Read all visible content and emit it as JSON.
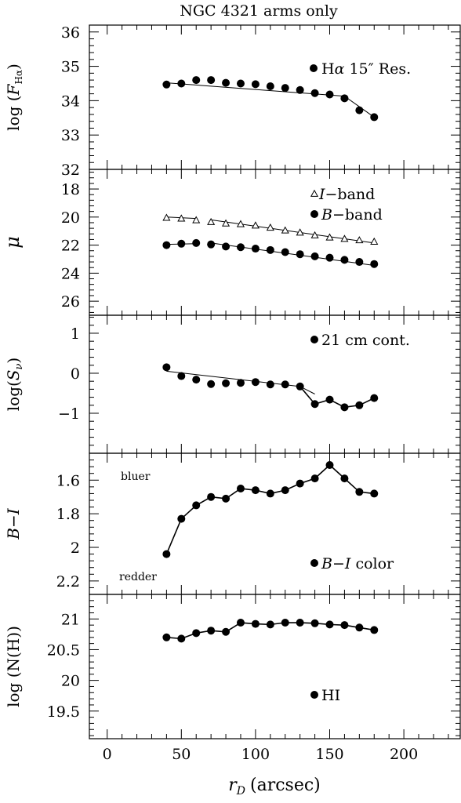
{
  "figure": {
    "title": "NGC 4321 arms only",
    "xlabel_var": "r",
    "xlabel_sub": "D",
    "xlabel_unit": "(arcsec)"
  },
  "chart_data": [
    {
      "type": "line",
      "panel": "halpha",
      "ylabel": "log (F_Hα)",
      "xlim": [
        -12,
        238
      ],
      "ylim": [
        32,
        36.2
      ],
      "yticks": [
        32,
        33,
        34,
        35,
        36
      ],
      "xticks": [
        0,
        50,
        100,
        150,
        200
      ],
      "series": [
        {
          "name": "Hα 15'' Res.",
          "marker": "filled-circle",
          "x": [
            40,
            50,
            60,
            70,
            80,
            90,
            100,
            110,
            120,
            130,
            140,
            150,
            160,
            170,
            180
          ],
          "y": [
            34.47,
            34.5,
            34.6,
            34.6,
            34.52,
            34.5,
            34.48,
            34.42,
            34.37,
            34.31,
            34.22,
            34.18,
            34.07,
            33.72,
            33.52
          ]
        }
      ],
      "fit_lines": [
        {
          "x": [
            40,
            160
          ],
          "y": [
            34.52,
            34.13
          ]
        },
        {
          "x": [
            160,
            180
          ],
          "y": [
            34.13,
            33.52
          ]
        }
      ],
      "legend_text": "Hα 15'' Res."
    },
    {
      "type": "line",
      "panel": "surface-brightness",
      "ylabel": "μ",
      "ylim": [
        27,
        16.6
      ],
      "yticks": [
        18,
        20,
        22,
        24,
        26
      ],
      "series": [
        {
          "name": "I-band",
          "marker": "open-triangle",
          "x": [
            40,
            50,
            60,
            70,
            80,
            90,
            100,
            110,
            120,
            130,
            140,
            150,
            160,
            170,
            180
          ],
          "y": [
            20.05,
            20.1,
            20.22,
            20.35,
            20.45,
            20.5,
            20.6,
            20.75,
            20.95,
            21.1,
            21.3,
            21.45,
            21.55,
            21.65,
            21.75
          ]
        },
        {
          "name": "B-band",
          "marker": "filled-circle",
          "x": [
            40,
            50,
            60,
            70,
            80,
            90,
            100,
            110,
            120,
            130,
            140,
            150,
            160,
            170,
            180
          ],
          "y": [
            22.0,
            21.9,
            21.85,
            21.95,
            22.1,
            22.15,
            22.25,
            22.35,
            22.5,
            22.65,
            22.8,
            22.9,
            23.05,
            23.2,
            23.35
          ]
        }
      ],
      "fit_lines": [
        {
          "x": [
            40,
            60
          ],
          "y": [
            20.0,
            20.1
          ]
        },
        {
          "x": [
            70,
            180
          ],
          "y": [
            20.2,
            21.85
          ]
        },
        {
          "x": [
            40,
            60
          ],
          "y": [
            21.95,
            21.9
          ]
        },
        {
          "x": [
            70,
            180
          ],
          "y": [
            21.85,
            23.45
          ]
        }
      ],
      "legend": [
        "I-band",
        "B-band"
      ]
    },
    {
      "type": "line",
      "panel": "radio",
      "ylabel": "log(S_ν)",
      "ylim": [
        -2,
        1.45
      ],
      "yticks": [
        -1,
        0,
        1
      ],
      "series": [
        {
          "name": "21 cm cont.",
          "marker": "filled-circle",
          "x": [
            40,
            50,
            60,
            70,
            80,
            90,
            100,
            110,
            120,
            130,
            140,
            150,
            160,
            170,
            180
          ],
          "y": [
            0.15,
            -0.07,
            -0.16,
            -0.27,
            -0.25,
            -0.24,
            -0.22,
            -0.28,
            -0.28,
            -0.33,
            -0.77,
            -0.66,
            -0.85,
            -0.8,
            -0.62
          ]
        }
      ],
      "fit_lines": [
        {
          "x": [
            40,
            130,
            140
          ],
          "y": [
            0.05,
            -0.33,
            -0.52
          ]
        }
      ],
      "legend_text": "21 cm cont."
    },
    {
      "type": "line",
      "panel": "color",
      "ylabel": "B−I",
      "ylim": [
        2.28,
        1.44
      ],
      "yticks": [
        1.6,
        1.8,
        2,
        2.2
      ],
      "ytick_labels": [
        "1.6",
        "1.8",
        "2",
        "2.2"
      ],
      "series": [
        {
          "name": "B-I color",
          "marker": "filled-circle",
          "x": [
            40,
            50,
            60,
            70,
            80,
            90,
            100,
            110,
            120,
            130,
            140,
            150,
            160,
            170,
            180
          ],
          "y": [
            2.04,
            1.83,
            1.75,
            1.7,
            1.71,
            1.65,
            1.66,
            1.68,
            1.66,
            1.62,
            1.59,
            1.51,
            1.59,
            1.67,
            1.68
          ]
        }
      ],
      "annotations": [
        "bluer",
        "redder"
      ],
      "legend_text": "B−I color"
    },
    {
      "type": "line",
      "panel": "hi",
      "ylabel": "log (N(H))",
      "ylim": [
        19.05,
        21.4
      ],
      "yticks": [
        19.5,
        20,
        20.5,
        21
      ],
      "ytick_labels": [
        "19.5",
        "20",
        "20.5",
        "21"
      ],
      "series": [
        {
          "name": "HI",
          "marker": "filled-circle",
          "x": [
            40,
            50,
            60,
            70,
            80,
            90,
            100,
            110,
            120,
            130,
            140,
            150,
            160,
            170,
            180
          ],
          "y": [
            20.7,
            20.68,
            20.77,
            20.81,
            20.79,
            20.94,
            20.92,
            20.91,
            20.94,
            20.94,
            20.93,
            20.91,
            20.9,
            20.86,
            20.82
          ]
        }
      ],
      "legend_text": "HI"
    }
  ]
}
